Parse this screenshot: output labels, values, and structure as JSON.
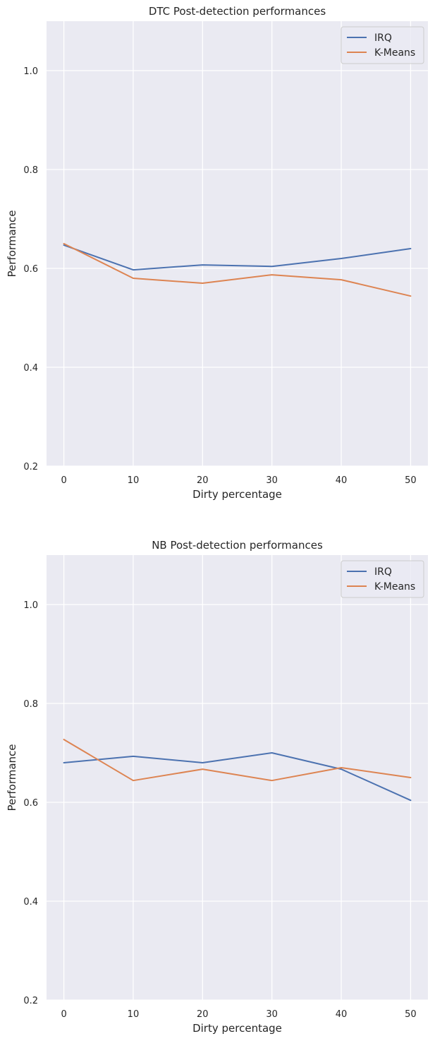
{
  "chart_data": [
    {
      "type": "line",
      "title": "DTC Post-detection performances",
      "xlabel": "Dirty percentage",
      "ylabel": "Performance",
      "x": [
        0,
        10,
        20,
        30,
        40,
        50
      ],
      "xticks": [
        "0",
        "10",
        "20",
        "30",
        "40",
        "50"
      ],
      "yticks": [
        "0.2",
        "0.4",
        "0.6",
        "0.8",
        "1.0"
      ],
      "xlim": [
        -2.5,
        52.5
      ],
      "ylim": [
        0.2,
        1.1
      ],
      "grid": true,
      "legend_position": "top-right",
      "series": [
        {
          "name": "IRQ",
          "color": "#4c72b0",
          "values": [
            0.647,
            0.597,
            0.607,
            0.604,
            0.62,
            0.64
          ]
        },
        {
          "name": "K-Means",
          "color": "#dd8452",
          "values": [
            0.65,
            0.58,
            0.57,
            0.587,
            0.577,
            0.544
          ]
        }
      ]
    },
    {
      "type": "line",
      "title": "NB Post-detection performances",
      "xlabel": "Dirty percentage",
      "ylabel": "Performance",
      "x": [
        0,
        10,
        20,
        30,
        40,
        50
      ],
      "xticks": [
        "0",
        "10",
        "20",
        "30",
        "40",
        "50"
      ],
      "yticks": [
        "0.2",
        "0.4",
        "0.6",
        "0.8",
        "1.0"
      ],
      "xlim": [
        -2.5,
        52.5
      ],
      "ylim": [
        0.2,
        1.1
      ],
      "grid": true,
      "legend_position": "top-right",
      "series": [
        {
          "name": "IRQ",
          "color": "#4c72b0",
          "values": [
            0.68,
            0.693,
            0.68,
            0.7,
            0.667,
            0.604
          ]
        },
        {
          "name": "K-Means",
          "color": "#dd8452",
          "values": [
            0.727,
            0.644,
            0.667,
            0.644,
            0.67,
            0.65
          ]
        }
      ]
    }
  ],
  "style": {
    "axes_background": "#eaeaf2",
    "grid_color": "#ffffff",
    "text_color": "#262626"
  }
}
